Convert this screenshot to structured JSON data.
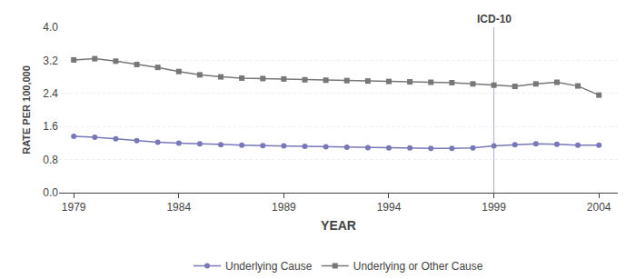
{
  "chart_data": {
    "type": "line",
    "x": [
      1979,
      1980,
      1981,
      1982,
      1983,
      1984,
      1985,
      1986,
      1987,
      1988,
      1989,
      1990,
      1991,
      1992,
      1993,
      1994,
      1995,
      1996,
      1997,
      1998,
      1999,
      2000,
      2001,
      2002,
      2003,
      2004
    ],
    "series": [
      {
        "name": "Underlying or Other Cause",
        "color": "#777777",
        "marker": "square",
        "values": [
          3.21,
          3.24,
          3.18,
          3.1,
          3.03,
          2.93,
          2.85,
          2.8,
          2.77,
          2.76,
          2.75,
          2.73,
          2.72,
          2.71,
          2.7,
          2.69,
          2.68,
          2.67,
          2.66,
          2.63,
          2.6,
          2.57,
          2.63,
          2.67,
          2.58,
          2.36
        ]
      },
      {
        "name": "Underlying Cause",
        "color": "#7878b8",
        "marker": "circle",
        "values": [
          1.36,
          1.34,
          1.3,
          1.26,
          1.22,
          1.2,
          1.18,
          1.16,
          1.15,
          1.14,
          1.13,
          1.12,
          1.11,
          1.1,
          1.09,
          1.08,
          1.08,
          1.07,
          1.07,
          1.08,
          1.13,
          1.16,
          1.18,
          1.17,
          1.15,
          1.15
        ]
      }
    ],
    "x_label": "YEAR",
    "y_label": "RATE PER 100,000",
    "xlim": [
      1978.3,
      2004.9
    ],
    "xticks": [
      1979,
      1984,
      1989,
      1994,
      1999,
      2004
    ],
    "ylim": [
      0.0,
      4.0
    ],
    "yticks": [
      {
        "value": 0,
        "label": "0.0"
      },
      0.8,
      1.6,
      2.4,
      3.2,
      {
        "value": 4,
        "label": "4.0"
      }
    ],
    "annotations": [
      {
        "text": "ICD-10",
        "x": 1999,
        "color": "#aaaacc"
      }
    ],
    "grid": true,
    "legend": "bottom"
  }
}
